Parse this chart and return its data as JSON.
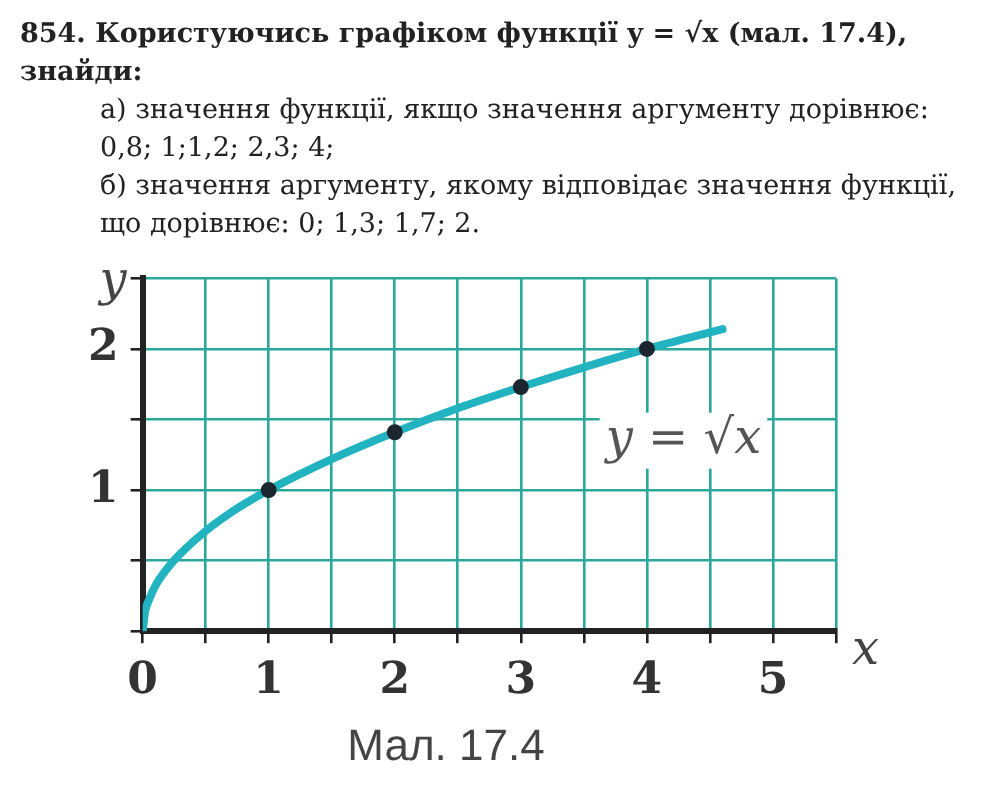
{
  "chart_data": {
    "type": "line",
    "title": "854. Користуючись графіком функції y = √x (мал. 17.4), знайди:",
    "xlabel": "x",
    "ylabel": "y",
    "annotations": [
      "а) значення функції, якщо значення аргументу дорівнює: 0,8; 1;1,2; 2,3; 4;",
      "б) значення аргументу, якому відповідає значення функції, що дорівнює: 0; 1,3; 1,7; 2.",
      "y = √x",
      "Мал. 17.4"
    ],
    "series": [
      {
        "type": "line",
        "color": "#22b3c0",
        "marker": "none",
        "line_style": "solid",
        "x": [
          0,
          0.02,
          0.05,
          0.1,
          0.2,
          0.3,
          0.5,
          0.75,
          1,
          1.5,
          2,
          2.5,
          3,
          3.5,
          4,
          4.6
        ],
        "values": [
          0,
          0.14,
          0.22,
          0.32,
          0.45,
          0.55,
          0.71,
          0.87,
          1,
          1.22,
          1.41,
          1.58,
          1.73,
          1.87,
          2,
          2.14
        ]
      },
      {
        "type": "scatter",
        "color": "#1b2630",
        "marker": "circle",
        "x": [
          1,
          2,
          3,
          4
        ],
        "values": [
          1,
          1.41,
          1.73,
          2
        ]
      }
    ],
    "xlim": [
      0,
      5.5
    ],
    "ylim": [
      0,
      2.5
    ],
    "xticks": [
      0,
      {
        "value": 0.5,
        "label": null
      },
      1,
      {
        "value": 1.5,
        "label": null
      },
      2,
      {
        "value": 2.5,
        "label": null
      },
      3,
      {
        "value": 3.5,
        "label": null
      },
      4,
      {
        "value": 4.5,
        "label": null
      },
      5,
      {
        "value": 5.5,
        "label": null
      }
    ],
    "yticks": [
      {
        "value": 0,
        "label": null
      },
      {
        "value": 0.5,
        "label": null
      },
      1,
      {
        "value": 1.5,
        "label": null
      },
      2,
      {
        "value": 2.5,
        "label": null
      }
    ],
    "grid": true
  }
}
